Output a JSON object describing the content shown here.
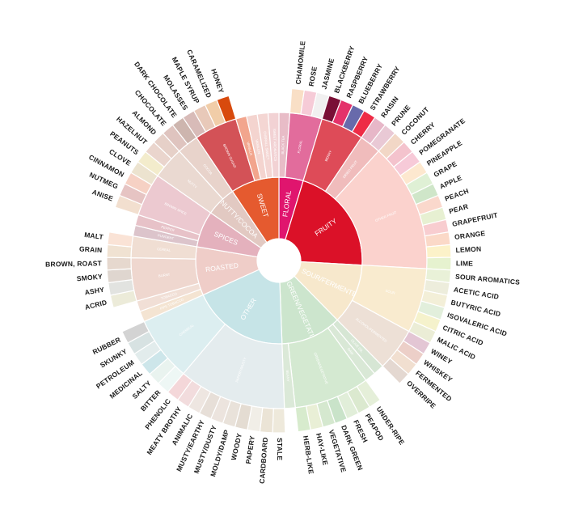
{
  "wheel": {
    "categories": [
      {
        "label": "FLORAL",
        "color": "#e0156e",
        "sub": [
          {
            "label": "BLACK TEA",
            "color": "#e8bcc7",
            "leaves": []
          },
          {
            "label": "FLORAL",
            "color": "#e26c9c",
            "leaves": [
              {
                "label": "CHAMOMILE",
                "color": "#f9dfc6"
              },
              {
                "label": "ROSE",
                "color": "#f6cbd7"
              },
              {
                "label": "JASMINE",
                "color": "#f1f0f0"
              }
            ]
          }
        ]
      },
      {
        "label": "FRUITY",
        "color": "#db1128",
        "sub": [
          {
            "label": "BERRY",
            "color": "#de4b58",
            "leaves": [
              {
                "label": "BLACKBERRY",
                "color": "#7a0f36"
              },
              {
                "label": "RASPBERRY",
                "color": "#e4326a"
              },
              {
                "label": "BLUEBERRY",
                "color": "#686aab"
              },
              {
                "label": "STRAWBERRY",
                "color": "#ee2c46"
              }
            ]
          },
          {
            "label": "DRIED FRUIT",
            "color": "#f0bcbc",
            "leaves": [
              {
                "label": "RAISIN",
                "color": "#e7b7c8"
              },
              {
                "label": "PRUNE",
                "color": "#e9c9d5"
              }
            ]
          },
          {
            "label": "OTHER FRUIT",
            "color": "#fbd2cd",
            "leaves": [
              {
                "label": "COCONUT",
                "color": "#f2d7c6"
              },
              {
                "label": "CHERRY",
                "color": "#f4c3cd"
              },
              {
                "label": "POMEGRANATE",
                "color": "#f7cad8"
              },
              {
                "label": "PINEAPPLE",
                "color": "#fde8cf"
              },
              {
                "label": "GRAPE",
                "color": "#dff0d5"
              },
              {
                "label": "APPLE",
                "color": "#cfe6c9"
              },
              {
                "label": "PEACH",
                "color": "#fad8cc"
              },
              {
                "label": "PEAR",
                "color": "#e7f0d2"
              },
              {
                "label": "GRAPEFRUIT",
                "color": "#f8cdd0"
              },
              {
                "label": "ORANGE",
                "color": "#fbd9c8"
              },
              {
                "label": "LEMON",
                "color": "#fcf2c9"
              },
              {
                "label": "LIME",
                "color": "#e6f2cf"
              }
            ]
          }
        ]
      },
      {
        "label": "SOUR/FERMENTED",
        "color": "#f7e8cc",
        "sub": [
          {
            "label": "SOUR",
            "color": "#f9ebcf",
            "leaves": [
              {
                "label": "SOUR AROMATICS",
                "color": "#e9f1d8"
              },
              {
                "label": "ACETIC ACID",
                "color": "#ededdc"
              },
              {
                "label": "BUTYRIC ACID",
                "color": "#f3efd8"
              },
              {
                "label": "ISOVALERIC ACID",
                "color": "#e2efdc"
              },
              {
                "label": "CITRIC ACID",
                "color": "#f5f2cc"
              },
              {
                "label": "MALIC ACID",
                "color": "#ebedd6"
              }
            ]
          },
          {
            "label": "ALCOHOL/FERMENTED",
            "color": "#ede0d6",
            "leaves": [
              {
                "label": "WINEY",
                "color": "#e3c6d4"
              },
              {
                "label": "WHISKEY",
                "color": "#eccfc8"
              },
              {
                "label": "FERMENTED",
                "color": "#f1dfd0"
              },
              {
                "label": "OVERRIPE",
                "color": "#e4d8d1"
              }
            ]
          }
        ]
      },
      {
        "label": "GREEN/VEGETATIVE",
        "color": "#cce5cd",
        "sub": [
          {
            "label": "OLIVE OIL",
            "color": "#d6e6d4",
            "leaves": []
          },
          {
            "label": "RAW",
            "color": "#d9e8d6",
            "leaves": []
          },
          {
            "label": "GREEN/VEGETATIVE",
            "color": "#d4e9d1",
            "leaves": [
              {
                "label": "UNDER-RIPE",
                "color": "#e5efd9"
              },
              {
                "label": "PEAPOD",
                "color": "#dbe9cf"
              },
              {
                "label": "FRESH",
                "color": "#e1eed9"
              },
              {
                "label": "DARK GREEN",
                "color": "#c9e3c9"
              },
              {
                "label": "VEGETATIVE",
                "color": "#d5e8cf"
              },
              {
                "label": "HAY-LIKE",
                "color": "#e9efd6"
              },
              {
                "label": "HERB-LIKE",
                "color": "#d7ebcd"
              }
            ]
          },
          {
            "label": "BEANY",
            "color": "#dbe9d8",
            "leaves": []
          }
        ]
      },
      {
        "label": "OTHER",
        "color": "#c6e4e7",
        "sub": [
          {
            "label": "PAPERY/MUSTY",
            "color": "#e4ecee",
            "leaves": [
              {
                "label": "STALE",
                "color": "#eee9db"
              },
              {
                "label": "CARDBOARD",
                "color": "#ebe4d6"
              },
              {
                "label": "PAPERY",
                "color": "#f1eee7"
              },
              {
                "label": "WOODY",
                "color": "#e4dcd2"
              },
              {
                "label": "MOLDY/DAMP",
                "color": "#e9e2da"
              },
              {
                "label": "MUSTY/DUSTY",
                "color": "#ece4de"
              },
              {
                "label": "MUSTY/EARTHY",
                "color": "#e7dfd8"
              },
              {
                "label": "ANIMALIC",
                "color": "#eee6e1"
              },
              {
                "label": "MEATY BROTHY",
                "color": "#f2dcdd"
              },
              {
                "label": "PHENOLIC",
                "color": "#f4d7d9"
              }
            ]
          },
          {
            "label": "CHEMICAL",
            "color": "#dceef0",
            "leaves": [
              {
                "label": "BITTER",
                "color": "#eef7f5"
              },
              {
                "label": "SALTY",
                "color": "#e9f3ef"
              },
              {
                "label": "MEDICINAL",
                "color": "#cde6ea"
              },
              {
                "label": "PETROLEUM",
                "color": "#e2ecec"
              },
              {
                "label": "SKUNKY",
                "color": "#d7e2e2"
              },
              {
                "label": "RUBBER",
                "color": "#d3d3d3"
              }
            ]
          }
        ]
      },
      {
        "label": "ROASTED",
        "color": "#efcdc8",
        "sub": [
          {
            "label": "PIPE TOBACCO",
            "color": "#f4e4d2",
            "leaves": []
          },
          {
            "label": "TOBACCO",
            "color": "#f1dfd6",
            "leaves": []
          },
          {
            "label": "BURNT",
            "color": "#efd7cf",
            "leaves": [
              {
                "label": "ACRID",
                "color": "#ecebd9"
              },
              {
                "label": "ASHY",
                "color": "#e2e3e0"
              },
              {
                "label": "SMOKY",
                "color": "#dfd6cf"
              },
              {
                "label": "BROWN, ROAST",
                "color": "#e6d8ce"
              }
            ]
          },
          {
            "label": "CEREAL",
            "color": "#f0ded3",
            "leaves": [
              {
                "label": "GRAIN",
                "color": "#f0e2d2"
              },
              {
                "label": "MALT",
                "color": "#fae3d6"
              }
            ]
          }
        ]
      },
      {
        "label": "SPICES",
        "color": "#e4b1bd",
        "sub": [
          {
            "label": "PUNGENT",
            "color": "#dcc4cb",
            "leaves": []
          },
          {
            "label": "PEPPER",
            "color": "#e7c2c8",
            "leaves": []
          },
          {
            "label": "BROWN SPICE",
            "color": "#ecc9d0",
            "leaves": [
              {
                "label": "ANISE",
                "color": "#f2dfcf"
              },
              {
                "label": "NUTMEG",
                "color": "#e6c4c3"
              },
              {
                "label": "CINNAMON",
                "color": "#f6d1c4"
              },
              {
                "label": "CLOVE",
                "color": "#ece3cf"
              }
            ]
          }
        ]
      },
      {
        "label": "NUTTY/COCOA",
        "color": "#e2c9c2",
        "sub": [
          {
            "label": "NUTTY",
            "color": "#ead9d1",
            "leaves": [
              {
                "label": "PEANUTS",
                "color": "#f3eccc"
              },
              {
                "label": "HAZELNUT",
                "color": "#ead5cd"
              },
              {
                "label": "ALMOND",
                "color": "#e6d0c8"
              }
            ]
          },
          {
            "label": "COCOA",
            "color": "#e8d3cb",
            "leaves": [
              {
                "label": "CHOCOLATE",
                "color": "#dfc4bf"
              },
              {
                "label": "DARK CHOCOLATE",
                "color": "#cdb5ae"
              }
            ]
          }
        ]
      },
      {
        "label": "SWEET",
        "color": "#e55a2f",
        "sub": [
          {
            "label": "BROWN SUGAR",
            "color": "#d35257",
            "leaves": [
              {
                "label": "MOLASSES",
                "color": "#d8bbb8"
              },
              {
                "label": "MAPLE SYRUP",
                "color": "#e8c9b9"
              },
              {
                "label": "CARAMELIZED",
                "color": "#f1cda8"
              },
              {
                "label": "HONEY",
                "color": "#d84a0d"
              }
            ]
          },
          {
            "label": "VANILLA",
            "color": "#f2a58d",
            "leaves": []
          },
          {
            "label": "VANILLIN",
            "color": "#f4d4cf",
            "leaves": []
          },
          {
            "label": "OVERALL SWEET",
            "color": "#f4d6d3",
            "leaves": []
          },
          {
            "label": "SWEET AROMATICS",
            "color": "#f2d2d4",
            "leaves": []
          }
        ]
      }
    ]
  }
}
